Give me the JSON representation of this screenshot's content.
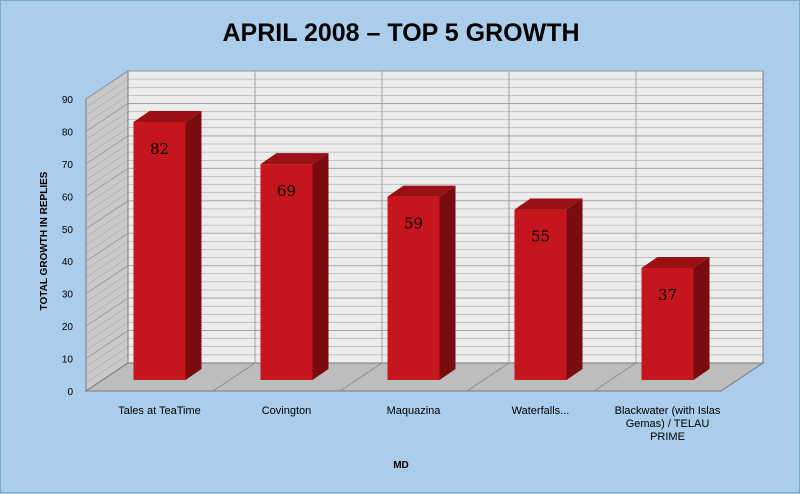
{
  "chart_data": {
    "type": "bar",
    "title": "APRIL 2008 – TOP 5 GROWTH",
    "xlabel": "MD",
    "ylabel": "TOTAL GROWTH IN REPLIES",
    "categories": [
      [
        "Tales at TeaTime"
      ],
      [
        "Covington"
      ],
      [
        "Maquazina"
      ],
      [
        "Waterfalls..."
      ],
      [
        "Blackwater (with Islas",
        "Gemas) / TELAU",
        "PRIME"
      ]
    ],
    "values": [
      82,
      69,
      59,
      55,
      37
    ],
    "data_labels": [
      "82",
      "69",
      "59",
      "55",
      "37"
    ],
    "ylim": [
      0,
      90
    ],
    "yticks": [
      0,
      10,
      20,
      30,
      40,
      50,
      60,
      70,
      80,
      90
    ],
    "grid": true,
    "legend": "none",
    "three_d": true,
    "colors": {
      "background": "#a9cdea",
      "bar_front": "#c4161c",
      "bar_side": "#7a0c10",
      "bar_top": "#9b1015",
      "wall": "#ececec",
      "side_wall": "#c9c9c9",
      "floor": "#bdbdbd",
      "grid": "#9a9a9a",
      "border": "#7a7a7a"
    }
  }
}
